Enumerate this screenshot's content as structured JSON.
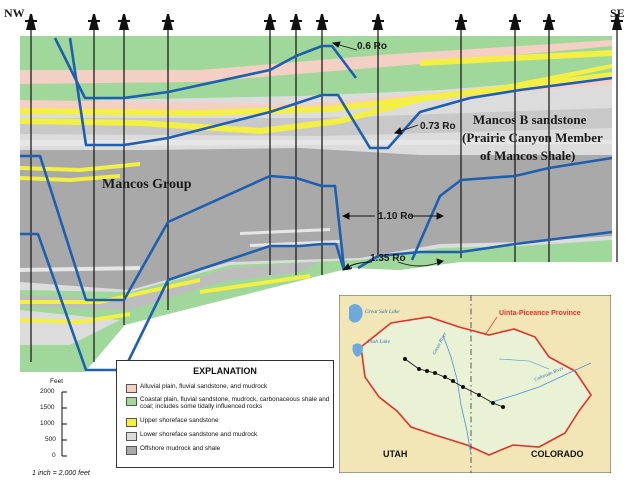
{
  "cross_section": {
    "nw_label": "NW",
    "se_label": "SE",
    "labels": {
      "mancos_group": "Mancos Group",
      "mancos_b_line1": "Mancos B sandstone",
      "mancos_b_line2": "(Prairie Canyon Member",
      "mancos_b_line3": "of Mancos Shale)"
    },
    "ro_labels": [
      "0.6 Ro",
      "0.73 Ro",
      "1.10 Ro",
      "1.35 Ro"
    ]
  },
  "legend": {
    "title": "EXPLANATION",
    "items": [
      {
        "label": "Alluvial plain, fluvial sandstone, and mudrock",
        "color": "#f4cfc4"
      },
      {
        "label": "Coastal plain, fluvial sandstone, mudrock, carbonaceous shale and coal; includes some tidally influenced rocks",
        "color": "#9fd89a"
      },
      {
        "label": "Upper shoreface sandstone",
        "color": "#f3f043"
      },
      {
        "label": "Lower shoreface sandstone and mudrock",
        "color": "#dcdcdc"
      },
      {
        "label": "Offshore mudrock and shale",
        "color": "#a9a9a9"
      }
    ]
  },
  "scale": {
    "unit": "Feet",
    "ticks": [
      "2000",
      "1500",
      "1000",
      "500",
      "0"
    ],
    "note": "1 inch = 2,000 feet"
  },
  "map": {
    "province_label": "Uinta-Piceance Province",
    "lake1": "Great Salt Lake",
    "lake2": "Utah Lake",
    "river1": "Green River",
    "river2": "Colorado River",
    "state_left": "UTAH",
    "state_right": "COLORADO"
  },
  "colors": {
    "offshore": "#a9a9a9",
    "lower_shoreface": "#dcdcdc",
    "upper_shoreface": "#f3f043",
    "coastal_plain": "#9fd89a",
    "alluvial": "#f4cfc4",
    "isograd": "#1f5fb0",
    "map_land": "#eaf2d6",
    "map_bg": "#f3e6b6",
    "province_border": "#e0332a"
  }
}
